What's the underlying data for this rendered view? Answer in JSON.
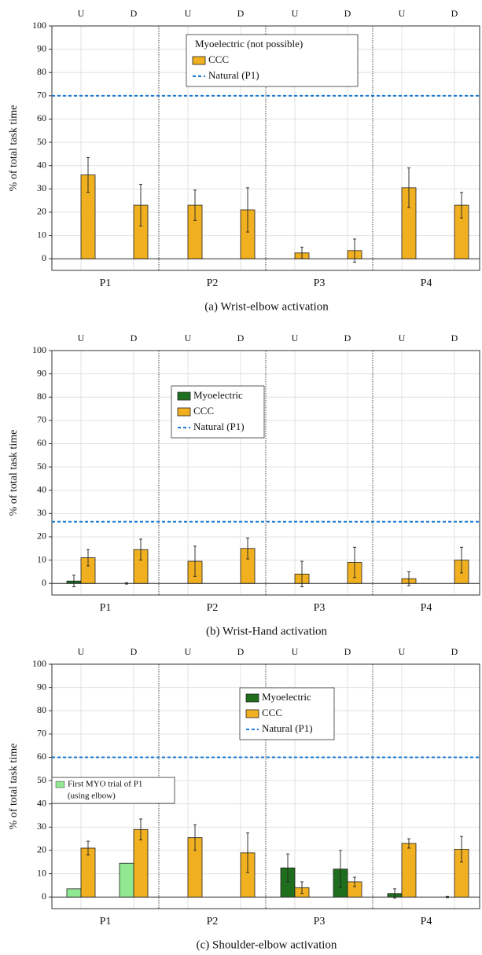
{
  "chart_data": [
    {
      "type": "bar",
      "title": "(a) Wrist-elbow activation",
      "ylabel": "% of total task time",
      "categories": [
        "U",
        "D",
        "U",
        "D",
        "U",
        "D",
        "U",
        "D"
      ],
      "groups": [
        "P1",
        "P2",
        "P3",
        "P4"
      ],
      "ylim": [
        -5,
        100
      ],
      "yticks": [
        0,
        10,
        20,
        30,
        40,
        50,
        60,
        70,
        80,
        90,
        100
      ],
      "grid": true,
      "legend_header": "Myoelectric (not possible)",
      "series": [
        {
          "name": "CCC",
          "color": "#f0b020",
          "values": [
            36,
            23,
            23,
            21,
            2.5,
            3.5,
            30.5,
            23
          ],
          "errors": [
            7.5,
            9,
            6.5,
            9.5,
            2.5,
            5,
            8.5,
            5.5
          ]
        }
      ],
      "reference": {
        "name": "Natural (P1)",
        "color": "#1a7ad4",
        "value": 70
      }
    },
    {
      "type": "bar",
      "title": "(b) Wrist-Hand activation",
      "ylabel": "% of total task time",
      "categories": [
        "U",
        "D",
        "U",
        "D",
        "U",
        "D",
        "U",
        "D"
      ],
      "groups": [
        "P1",
        "P2",
        "P3",
        "P4"
      ],
      "ylim": [
        -5,
        100
      ],
      "yticks": [
        0,
        10,
        20,
        30,
        40,
        50,
        60,
        70,
        80,
        90,
        100
      ],
      "grid": true,
      "series": [
        {
          "name": "Myoelectric",
          "color": "#1e6e1e",
          "values": [
            1,
            0,
            null,
            null,
            null,
            null,
            null,
            null
          ],
          "errors": [
            2.5,
            0.3,
            null,
            null,
            null,
            null,
            null,
            null
          ]
        },
        {
          "name": "CCC",
          "color": "#f0b020",
          "values": [
            11,
            14.5,
            9.5,
            15,
            4,
            9,
            2,
            10
          ],
          "errors": [
            3.5,
            4.5,
            6.5,
            4.5,
            5.5,
            6.5,
            3,
            5.5
          ]
        }
      ],
      "reference": {
        "name": "Natural (P1)",
        "color": "#1a7ad4",
        "value": 26.5
      }
    },
    {
      "type": "bar",
      "title": "(c) Shoulder-elbow activation",
      "ylabel": "% of total task time",
      "categories": [
        "U",
        "D",
        "U",
        "D",
        "U",
        "D",
        "U",
        "D"
      ],
      "groups": [
        "P1",
        "P2",
        "P3",
        "P4"
      ],
      "ylim": [
        -5,
        100
      ],
      "yticks": [
        0,
        10,
        20,
        30,
        40,
        50,
        60,
        70,
        80,
        90,
        100
      ],
      "grid": true,
      "series": [
        {
          "name": "Myoelectric",
          "color": "#1e6e1e",
          "colors": [
            "#90e890",
            "#90e890",
            "#1e6e1e",
            "#1e6e1e",
            "#1e6e1e",
            "#1e6e1e",
            "#1e6e1e",
            "#1e6e1e"
          ],
          "values": [
            3.5,
            14.5,
            null,
            null,
            12.5,
            12,
            1.5,
            0
          ],
          "errors": [
            null,
            null,
            null,
            null,
            6,
            8,
            2,
            0.3
          ]
        },
        {
          "name": "CCC",
          "color": "#f0b020",
          "values": [
            21,
            29,
            25.5,
            19,
            4,
            6.5,
            23,
            20.5
          ],
          "errors": [
            3,
            4.5,
            5.5,
            8.5,
            2.5,
            2,
            2,
            5.5
          ]
        }
      ],
      "reference": {
        "name": "Natural (P1)",
        "color": "#1a7ad4",
        "value": 60
      },
      "annotation": {
        "color": "#90e890",
        "lines": [
          "First MYO trial of P1",
          "(using elbow)"
        ]
      }
    }
  ]
}
